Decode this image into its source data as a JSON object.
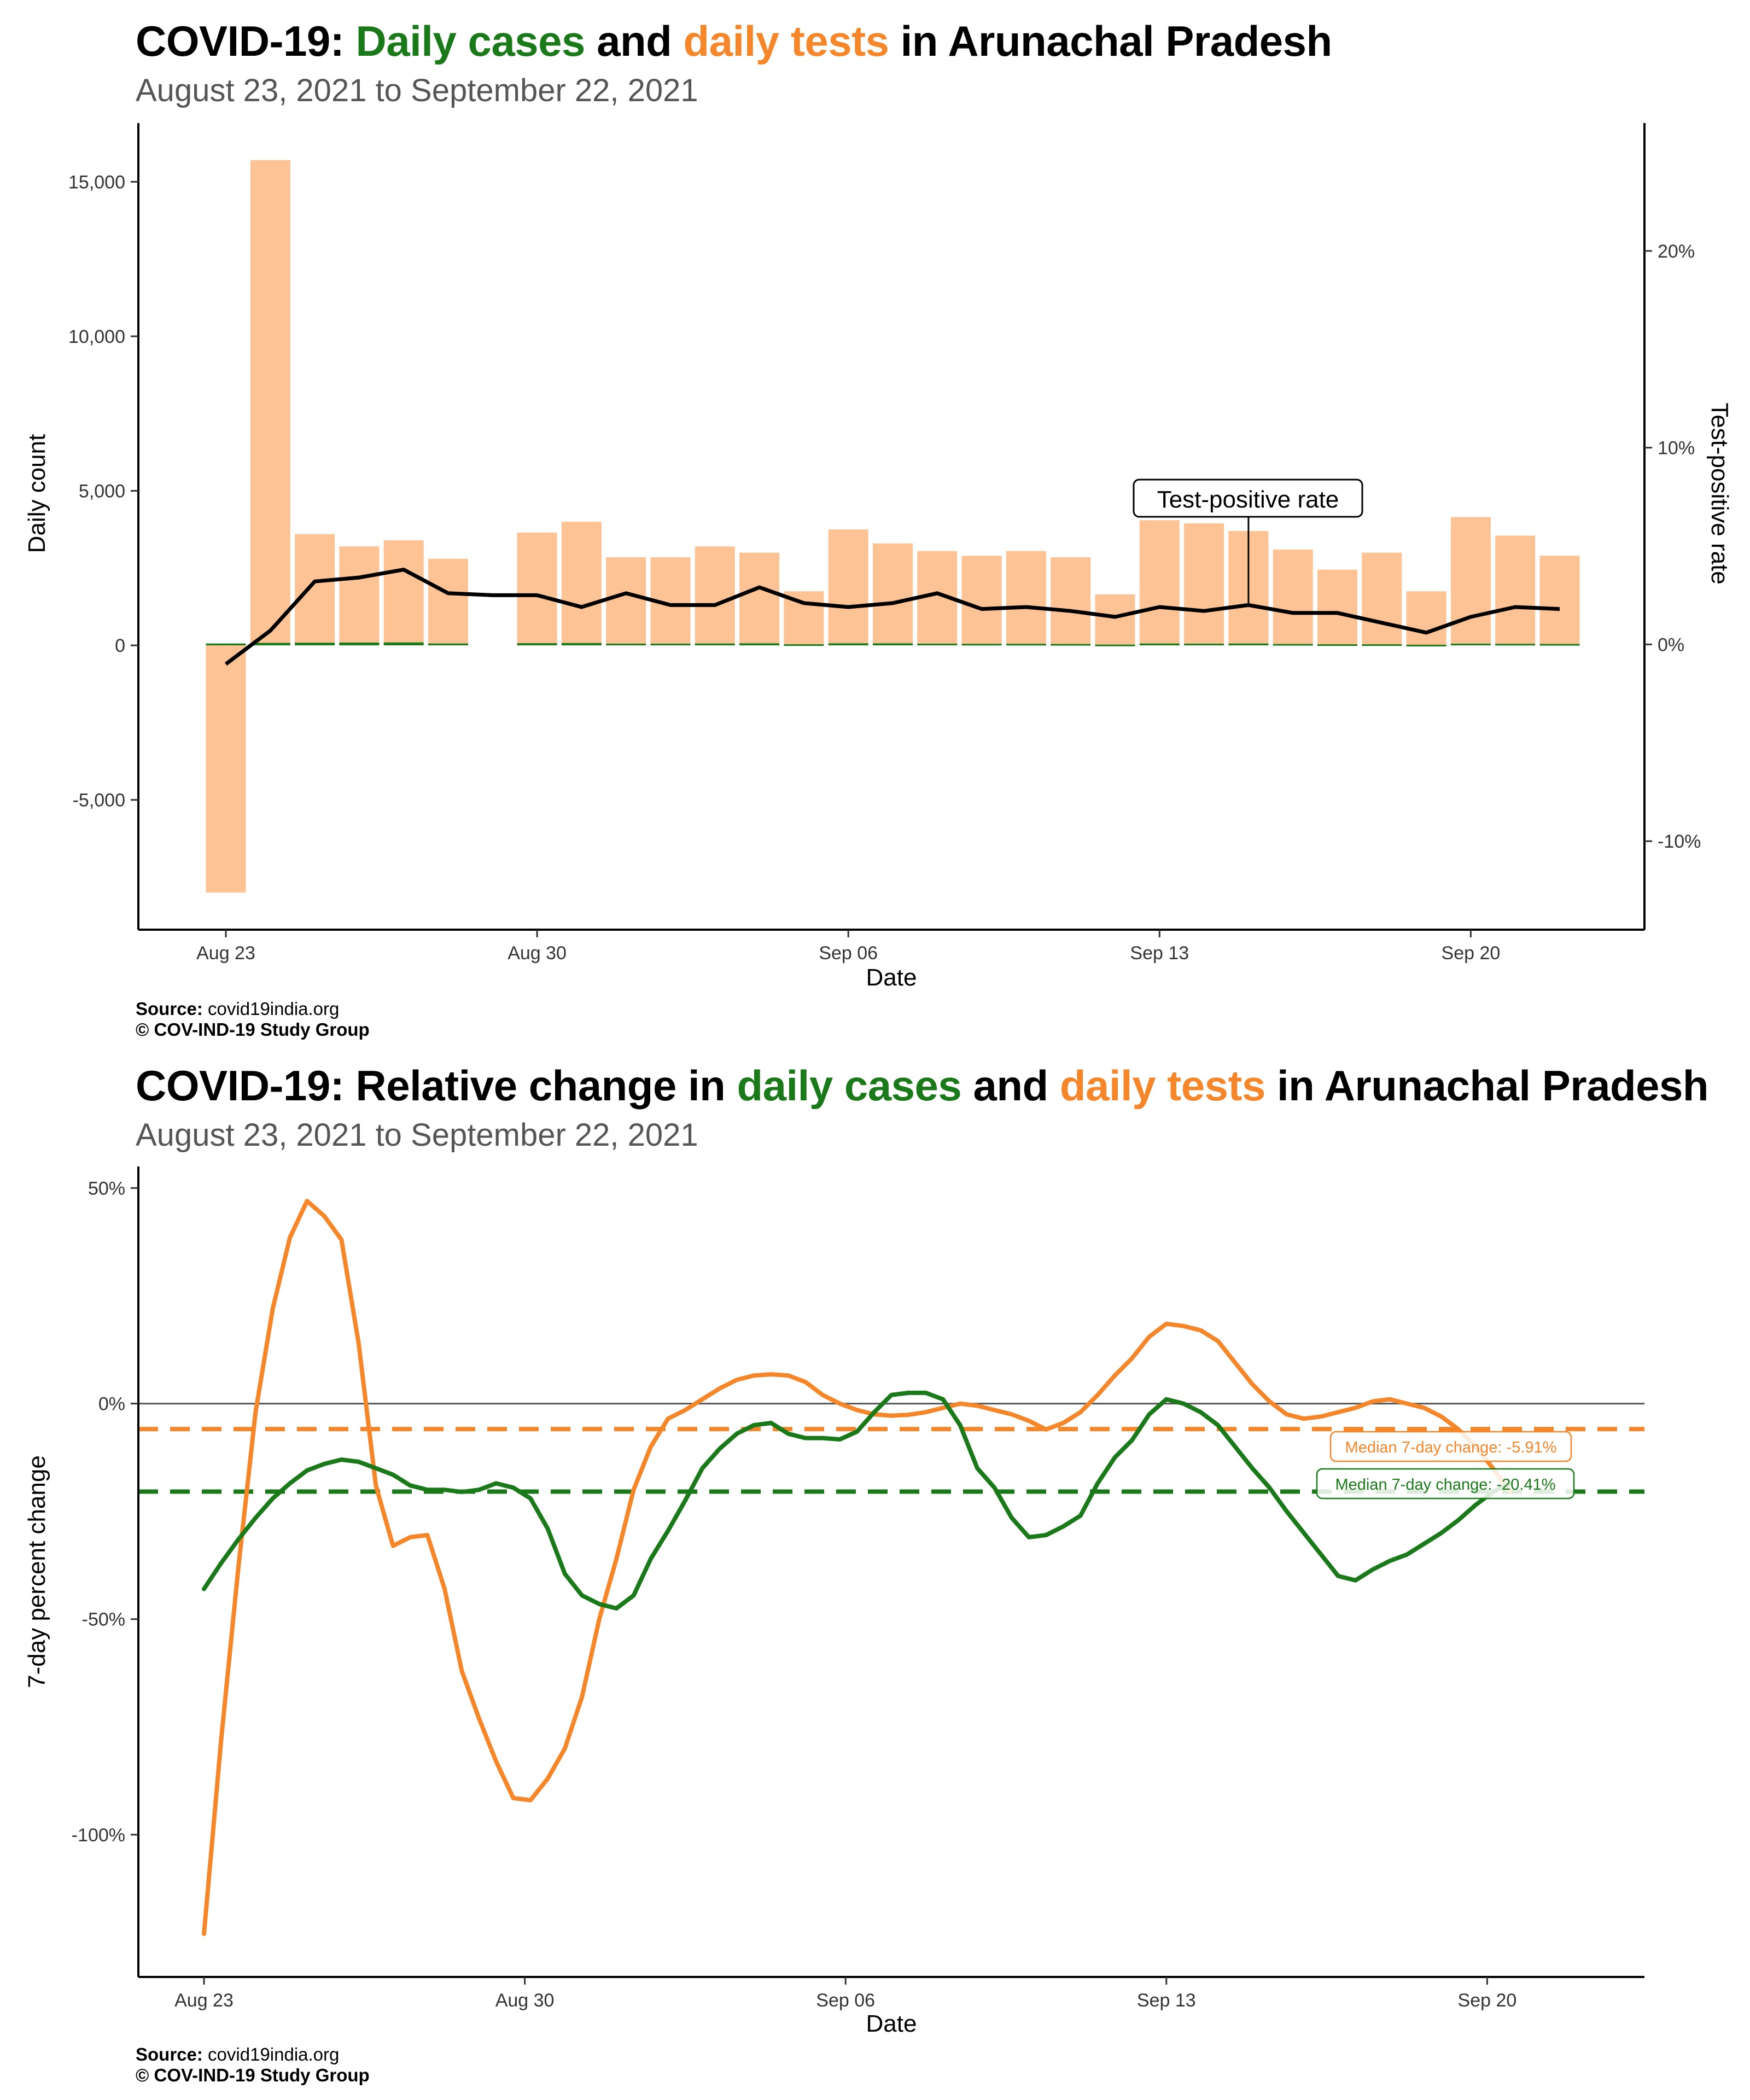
{
  "chart1": {
    "title_parts": [
      "COVID-19: ",
      "Daily cases",
      " and ",
      "daily tests",
      " in Arunachal Pradesh"
    ],
    "subtitle": "August 23, 2021 to September 22, 2021",
    "source_label": "Source:",
    "source_value": "covid19india.org",
    "copyright": "© COV-IND-19 Study Group"
  },
  "chart2": {
    "title_parts": [
      "COVID-19: Relative change in ",
      "daily cases",
      " and ",
      "daily tests",
      " in Arunachal Pradesh"
    ],
    "subtitle": "August 23, 2021 to September 22, 2021",
    "source_label": "Source:",
    "source_value": "covid19india.org",
    "copyright": "© COV-IND-19 Study Group"
  },
  "colors": {
    "cases": "#1a7a1a",
    "tests": "#f5862a",
    "tests_bar": "#fdc395",
    "tpr_line": "#000000",
    "zero_line": "#555555"
  },
  "chart_data": [
    {
      "type": "bar",
      "title": "COVID-19: Daily cases and daily tests in Arunachal Pradesh",
      "subtitle": "August 23, 2021 to September 22, 2021",
      "xlabel": "Date",
      "ylabel": "Daily count",
      "y2label": "Test-positive rate",
      "ylim": [
        -9200,
        16900
      ],
      "y2lim": [
        -14.5,
        26.5
      ],
      "yticks": [
        -5000,
        0,
        5000,
        10000,
        15000
      ],
      "ytick_labels": [
        "-5,000",
        "0",
        "5,000",
        "10,000",
        "15,000"
      ],
      "y2ticks": [
        -10,
        0,
        10,
        20
      ],
      "y2tick_labels": [
        "-10%",
        "0%",
        "10%",
        "20%"
      ],
      "xticks": [
        "2021-08-23",
        "2021-08-30",
        "2021-09-06",
        "2021-09-13",
        "2021-09-20"
      ],
      "xtick_labels": [
        "Aug 23",
        "Aug 30",
        "Sep 06",
        "Sep 13",
        "Sep 20"
      ],
      "dates": [
        "2021-08-23",
        "2021-08-24",
        "2021-08-25",
        "2021-08-26",
        "2021-08-27",
        "2021-08-28",
        "2021-08-29",
        "2021-08-30",
        "2021-08-31",
        "2021-09-01",
        "2021-09-02",
        "2021-09-03",
        "2021-09-04",
        "2021-09-05",
        "2021-09-06",
        "2021-09-07",
        "2021-09-08",
        "2021-09-09",
        "2021-09-10",
        "2021-09-11",
        "2021-09-12",
        "2021-09-13",
        "2021-09-14",
        "2021-09-15",
        "2021-09-16",
        "2021-09-17",
        "2021-09-18",
        "2021-09-19",
        "2021-09-20",
        "2021-09-21",
        "2021-09-22"
      ],
      "series": [
        {
          "name": "daily tests",
          "kind": "bar",
          "values": [
            -8000,
            15700,
            3600,
            3200,
            3400,
            2800,
            0,
            3650,
            4000,
            2850,
            2850,
            3200,
            3000,
            1750,
            3750,
            3300,
            3050,
            2900,
            3050,
            2850,
            1650,
            4050,
            3950,
            3700,
            3100,
            2450,
            3000,
            1750,
            4150,
            3550,
            2900
          ]
        },
        {
          "name": "daily cases",
          "kind": "bar",
          "values": [
            60,
            80,
            85,
            90,
            95,
            60,
            0,
            70,
            75,
            55,
            55,
            60,
            65,
            35,
            65,
            65,
            55,
            50,
            50,
            45,
            25,
            60,
            55,
            60,
            45,
            35,
            35,
            20,
            55,
            50,
            45
          ]
        },
        {
          "name": "Test-positive rate",
          "kind": "line",
          "axis": "right",
          "values": [
            -1.0,
            0.7,
            3.2,
            3.4,
            3.8,
            2.6,
            2.5,
            2.5,
            1.9,
            2.6,
            2.0,
            2.0,
            2.9,
            2.1,
            1.9,
            2.1,
            2.6,
            1.8,
            1.9,
            1.7,
            1.4,
            1.9,
            1.7,
            2.0,
            1.6,
            1.6,
            1.1,
            0.6,
            1.4,
            1.9,
            1.8
          ]
        }
      ],
      "annotations": [
        {
          "text": "Test-positive rate",
          "date": "2021-09-15"
        }
      ]
    },
    {
      "type": "line",
      "title": "COVID-19: Relative change in daily cases and daily tests in Arunachal Pradesh",
      "subtitle": "August 23, 2021 to September 22, 2021",
      "xlabel": "Date",
      "ylabel": "7-day percent change",
      "ylim": [
        -133,
        55
      ],
      "yticks": [
        -100,
        -50,
        0,
        50
      ],
      "ytick_labels": [
        "-100%",
        "-50%",
        "0%",
        "50%"
      ],
      "xticks": [
        "2021-08-23",
        "2021-08-30",
        "2021-09-06",
        "2021-09-13",
        "2021-09-20"
      ],
      "xtick_labels": [
        "Aug 23",
        "Aug 30",
        "Sep 06",
        "Sep 13",
        "Sep 20"
      ],
      "x_start": "2021-08-23",
      "x_step_days": 0.375,
      "series": [
        {
          "name": "daily tests",
          "values": [
            -123.0,
            -78.0,
            -38.0,
            -2.0,
            22.0,
            38.5,
            47.0,
            43.5,
            38.0,
            14.0,
            -19.0,
            -33.0,
            -31.0,
            -30.5,
            -43.0,
            -62.0,
            -73.0,
            -83.0,
            -91.5,
            -92.0,
            -87.0,
            -80.0,
            -68.0,
            -50.0,
            -36.0,
            -20.0,
            -10.0,
            -3.5,
            -1.5,
            1.0,
            3.5,
            5.5,
            6.5,
            6.8,
            6.5,
            5.0,
            2.0,
            0.0,
            -1.5,
            -2.5,
            -2.8,
            -2.6,
            -2.0,
            -1.0,
            0.0,
            -0.5,
            -1.5,
            -2.5,
            -4.0,
            -6.0,
            -4.5,
            -2.0,
            2.0,
            6.5,
            10.5,
            15.5,
            18.5,
            18.0,
            17.0,
            14.5,
            9.5,
            4.5,
            0.5,
            -2.5,
            -3.5,
            -3.0,
            -2.0,
            -1.0,
            0.5,
            1.0,
            0.0,
            -1.0,
            -3.0,
            -6.0,
            -10.0,
            -15.0,
            -20.5
          ]
        },
        {
          "name": "daily cases",
          "values": [
            -43.0,
            -37.0,
            -31.5,
            -26.5,
            -22.0,
            -18.5,
            -15.5,
            -14.0,
            -13.0,
            -13.5,
            -15.0,
            -16.5,
            -19.0,
            -20.0,
            -20.0,
            -20.5,
            -20.0,
            -18.5,
            -19.5,
            -22.0,
            -29.0,
            -39.5,
            -44.5,
            -46.5,
            -47.5,
            -44.5,
            -36.0,
            -29.5,
            -22.5,
            -15.0,
            -10.5,
            -7.0,
            -5.0,
            -4.5,
            -7.0,
            -8.0,
            -8.0,
            -8.3,
            -6.5,
            -2.0,
            2.0,
            2.5,
            2.5,
            1.0,
            -5.0,
            -15.0,
            -19.5,
            -26.5,
            -31.0,
            -30.5,
            -28.5,
            -26.0,
            -18.5,
            -12.5,
            -8.5,
            -2.5,
            1.0,
            0.0,
            -2.0,
            -5.0,
            -10.0,
            -15.0,
            -19.5,
            -25.0,
            -30.0,
            -35.0,
            -40.0,
            -41.0,
            -38.5,
            -36.5,
            -35.0,
            -32.5,
            -30.0,
            -27.0,
            -23.5,
            -20.5,
            -18.5
          ]
        }
      ],
      "reference_lines": [
        {
          "label": "Median 7-day change: -5.91%",
          "value": -5.91,
          "series": "daily tests"
        },
        {
          "label": "Median 7-day change: -20.41%",
          "value": -20.41,
          "series": "daily cases"
        }
      ]
    }
  ]
}
